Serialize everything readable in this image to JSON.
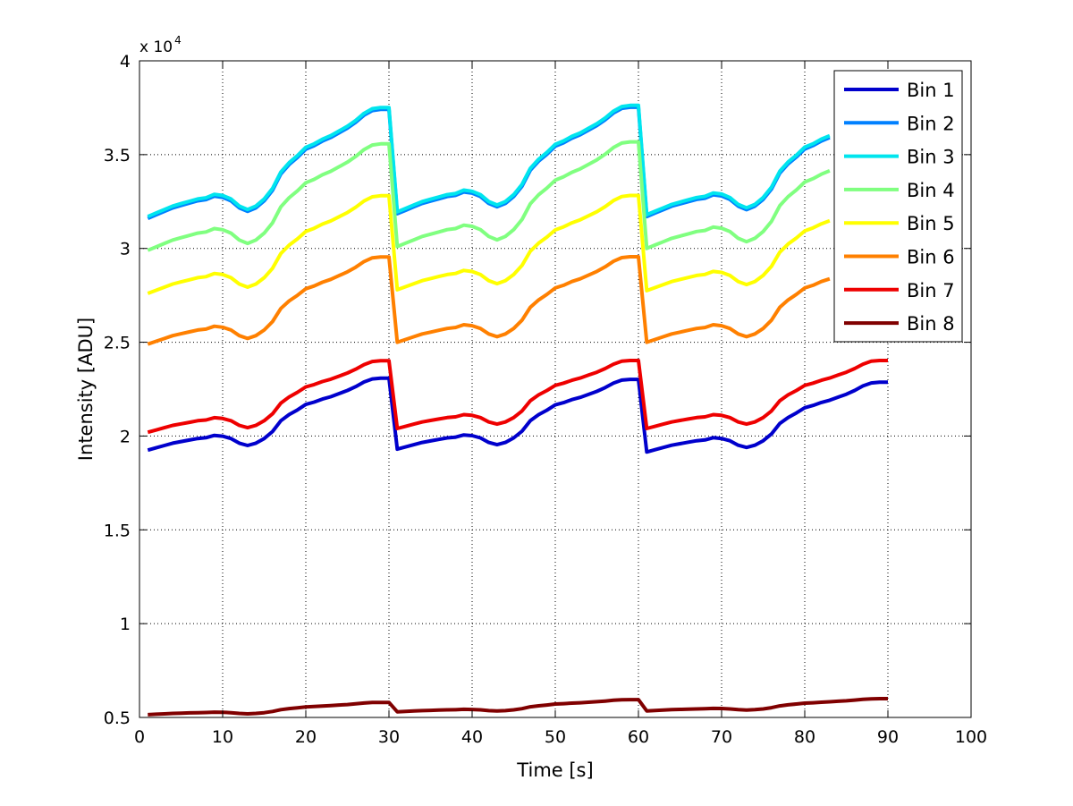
{
  "chart_data": {
    "type": "line",
    "xlabel": "Time [s]",
    "ylabel": "Intensity [ADU]",
    "xlim": [
      0,
      100
    ],
    "ylim": [
      5000,
      40000
    ],
    "xticks": [
      0,
      10,
      20,
      30,
      40,
      50,
      60,
      70,
      80,
      90,
      100
    ],
    "yticks": [
      5000,
      10000,
      15000,
      20000,
      25000,
      30000,
      35000,
      40000
    ],
    "ytick_labels": [
      "0.5",
      "1",
      "1.5",
      "2",
      "2.5",
      "3",
      "3.5",
      "4"
    ],
    "y_multiplier_base": "x 10",
    "y_multiplier_exp": "4",
    "grid": true,
    "legend_position": "top-right",
    "cycle_template_x": [
      0,
      1,
      2,
      3,
      4,
      5,
      6,
      7,
      8,
      9,
      10,
      11,
      12,
      13,
      14,
      15,
      16,
      17,
      18,
      19,
      20,
      21,
      22,
      23,
      24,
      25,
      26,
      27,
      28,
      29
    ],
    "cycle_template_offset": [
      0,
      150,
      300,
      450,
      550,
      650,
      750,
      800,
      950,
      900,
      750,
      450,
      300,
      450,
      750,
      1200,
      1900,
      2300,
      2600,
      2950,
      3100,
      3300,
      3450,
      3650,
      3850,
      4100,
      4400,
      4600,
      4650,
      4650
    ],
    "series": [
      {
        "name": "Bin 1",
        "color": "#0000CC",
        "base": [
          19250,
          19300,
          19150
        ],
        "scale": [
          0.825,
          0.8,
          0.8
        ],
        "x_end": [
          30,
          60,
          93
        ]
      },
      {
        "name": "Bin 2",
        "color": "#0080FF",
        "base": [
          31600,
          31850,
          31700
        ],
        "scale": [
          1.25,
          1.22,
          1.22
        ],
        "x_end": [
          30,
          60,
          83
        ]
      },
      {
        "name": "Bin 3",
        "color": "#00E5EE",
        "base": [
          31700,
          31950,
          31800
        ],
        "scale": [
          1.25,
          1.22,
          1.22
        ],
        "x_end": [
          30,
          60,
          83
        ]
      },
      {
        "name": "Bin 4",
        "color": "#80FF80",
        "base": [
          29900,
          30100,
          30000
        ],
        "scale": [
          1.22,
          1.2,
          1.2
        ],
        "x_end": [
          30,
          60,
          83
        ]
      },
      {
        "name": "Bin 5",
        "color": "#FFFF00",
        "base": [
          27600,
          27800,
          27750
        ],
        "scale": [
          1.12,
          1.08,
          1.08
        ],
        "x_end": [
          30,
          60,
          83
        ]
      },
      {
        "name": "Bin 6",
        "color": "#FF8000",
        "base": [
          24900,
          25000,
          25000
        ],
        "scale": [
          1.0,
          0.98,
          0.98
        ],
        "x_end": [
          30,
          60,
          83
        ]
      },
      {
        "name": "Bin 7",
        "color": "#EE0000",
        "base": [
          20200,
          20400,
          20400
        ],
        "scale": [
          0.82,
          0.78,
          0.78
        ],
        "x_end": [
          30,
          60,
          93
        ]
      },
      {
        "name": "Bin 8",
        "color": "#800000",
        "base": [
          5150,
          5300,
          5350
        ],
        "scale": [
          0.14,
          0.14,
          0.14
        ],
        "x_end": [
          30,
          60,
          93
        ]
      }
    ]
  }
}
